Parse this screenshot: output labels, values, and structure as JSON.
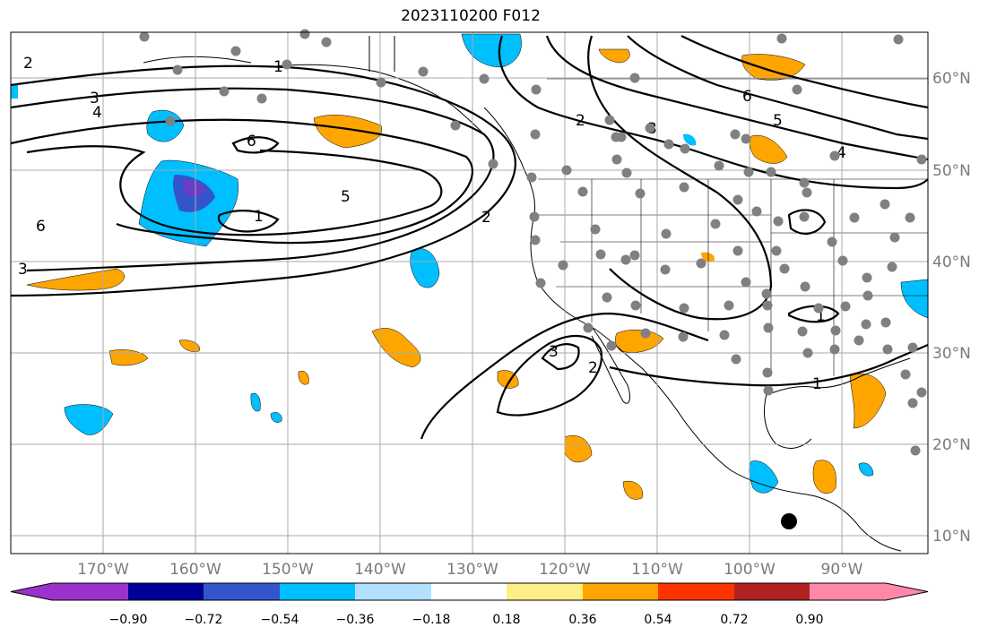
{
  "title": "2023110200 F012",
  "map": {
    "lat_labels": [
      {
        "value": 60,
        "text": "60°N"
      },
      {
        "value": 50,
        "text": "50°N"
      },
      {
        "value": 40,
        "text": "40°N"
      },
      {
        "value": 30,
        "text": "30°N"
      },
      {
        "value": 20,
        "text": "20°N"
      },
      {
        "value": 10,
        "text": "10°N"
      }
    ],
    "lon_labels": [
      {
        "value": -170,
        "text": "170°W"
      },
      {
        "value": -160,
        "text": "160°W"
      },
      {
        "value": -150,
        "text": "150°W"
      },
      {
        "value": -140,
        "text": "140°W"
      },
      {
        "value": -130,
        "text": "130°W"
      },
      {
        "value": -120,
        "text": "120°W"
      },
      {
        "value": -110,
        "text": "110°W"
      },
      {
        "value": -100,
        "text": "100°W"
      },
      {
        "value": -90,
        "text": "90°W"
      }
    ],
    "contour_labels": [
      "1",
      "2",
      "3",
      "4",
      "5",
      "6"
    ]
  },
  "colorbar": {
    "ticks": [
      "−0.90",
      "−0.72",
      "−0.54",
      "−0.36",
      "−0.18",
      "0.18",
      "0.36",
      "0.54",
      "0.72",
      "0.90"
    ],
    "colors": [
      "#9933cc",
      "#000099",
      "#3355cc",
      "#00bfff",
      "#b3e0ff",
      "#ffffff",
      "#ffee88",
      "#ffa500",
      "#ff3300",
      "#b22222",
      "#ff88aa"
    ]
  }
}
